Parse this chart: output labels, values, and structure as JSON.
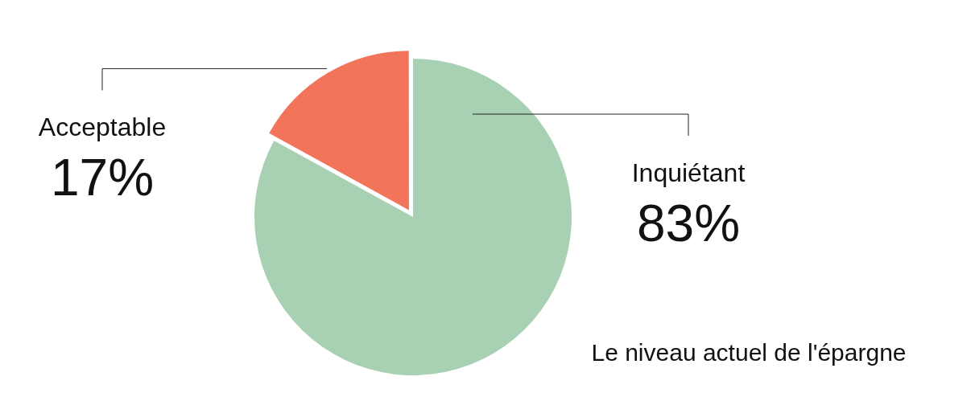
{
  "chart_data": {
    "type": "pie",
    "title": "Le niveau actuel de l'épargne",
    "categories": [
      "Inquiétant",
      "Acceptable"
    ],
    "values": [
      83,
      17
    ],
    "colors": [
      "#a8d1b4",
      "#f2745b"
    ],
    "value_labels": [
      "83%",
      "17%"
    ]
  }
}
